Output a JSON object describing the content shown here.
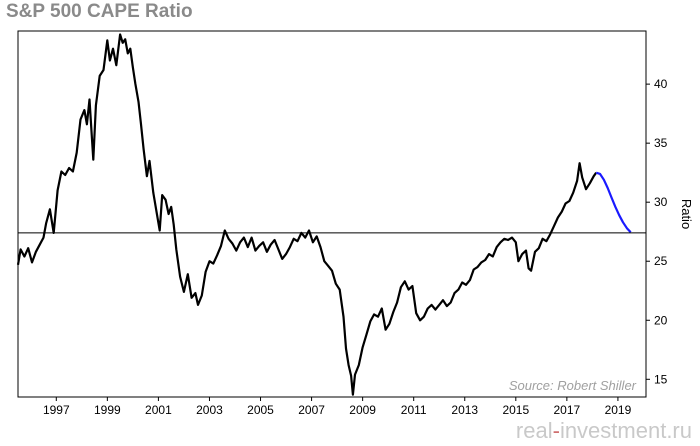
{
  "chart_data": {
    "type": "line",
    "title": "S&P 500 CAPE Ratio",
    "ylabel": "Ratio",
    "xlabel": "",
    "xlim": [
      1996.0,
      2020.6
    ],
    "ylim": [
      13.5,
      44.5
    ],
    "y_ticks": [
      15,
      20,
      25,
      30,
      35,
      40
    ],
    "x_ticks": [
      1997,
      1999,
      2001,
      2003,
      2005,
      2007,
      2009,
      2011,
      2013,
      2015,
      2017,
      2019
    ],
    "reference_line": 27.4,
    "annotation": "Source: Robert Shiller",
    "grid": false,
    "series": [
      {
        "color": "#000000",
        "points": [
          [
            1996.0,
            24.7
          ],
          [
            1996.1,
            26.0
          ],
          [
            1996.25,
            25.4
          ],
          [
            1996.4,
            26.1
          ],
          [
            1996.55,
            24.9
          ],
          [
            1996.7,
            25.8
          ],
          [
            1996.85,
            26.4
          ],
          [
            1997.0,
            27.0
          ],
          [
            1997.1,
            28.2
          ],
          [
            1997.25,
            29.4
          ],
          [
            1997.4,
            27.4
          ],
          [
            1997.55,
            31.0
          ],
          [
            1997.7,
            32.6
          ],
          [
            1997.85,
            32.3
          ],
          [
            1998.0,
            32.9
          ],
          [
            1998.15,
            32.6
          ],
          [
            1998.3,
            34.2
          ],
          [
            1998.45,
            37.0
          ],
          [
            1998.6,
            37.8
          ],
          [
            1998.7,
            36.6
          ],
          [
            1998.8,
            38.7
          ],
          [
            1998.88,
            36.0
          ],
          [
            1998.95,
            33.6
          ],
          [
            1999.05,
            38.2
          ],
          [
            1999.2,
            40.7
          ],
          [
            1999.35,
            41.2
          ],
          [
            1999.5,
            43.7
          ],
          [
            1999.6,
            42.0
          ],
          [
            1999.72,
            43.0
          ],
          [
            1999.85,
            41.6
          ],
          [
            2000.0,
            44.2
          ],
          [
            2000.1,
            43.5
          ],
          [
            2000.2,
            43.8
          ],
          [
            2000.3,
            42.6
          ],
          [
            2000.4,
            43.0
          ],
          [
            2000.5,
            41.4
          ],
          [
            2000.6,
            40.0
          ],
          [
            2000.72,
            38.5
          ],
          [
            2000.82,
            36.6
          ],
          [
            2000.92,
            34.5
          ],
          [
            2001.05,
            32.2
          ],
          [
            2001.15,
            33.5
          ],
          [
            2001.3,
            30.8
          ],
          [
            2001.45,
            28.9
          ],
          [
            2001.55,
            27.6
          ],
          [
            2001.65,
            30.6
          ],
          [
            2001.78,
            30.2
          ],
          [
            2001.9,
            29.0
          ],
          [
            2002.0,
            29.6
          ],
          [
            2002.1,
            28.1
          ],
          [
            2002.2,
            26.0
          ],
          [
            2002.35,
            23.7
          ],
          [
            2002.5,
            22.4
          ],
          [
            2002.65,
            23.9
          ],
          [
            2002.8,
            21.9
          ],
          [
            2002.95,
            22.3
          ],
          [
            2003.05,
            21.3
          ],
          [
            2003.2,
            22.1
          ],
          [
            2003.35,
            24.1
          ],
          [
            2003.5,
            25.0
          ],
          [
            2003.65,
            24.8
          ],
          [
            2003.8,
            25.5
          ],
          [
            2003.95,
            26.3
          ],
          [
            2004.1,
            27.6
          ],
          [
            2004.25,
            26.9
          ],
          [
            2004.4,
            26.5
          ],
          [
            2004.55,
            25.9
          ],
          [
            2004.7,
            26.6
          ],
          [
            2004.85,
            27.0
          ],
          [
            2005.0,
            26.2
          ],
          [
            2005.15,
            27.0
          ],
          [
            2005.3,
            25.9
          ],
          [
            2005.45,
            26.3
          ],
          [
            2005.6,
            26.6
          ],
          [
            2005.75,
            25.8
          ],
          [
            2005.9,
            26.4
          ],
          [
            2006.05,
            26.8
          ],
          [
            2006.2,
            26.0
          ],
          [
            2006.35,
            25.2
          ],
          [
            2006.5,
            25.6
          ],
          [
            2006.65,
            26.2
          ],
          [
            2006.8,
            26.9
          ],
          [
            2006.95,
            26.7
          ],
          [
            2007.1,
            27.4
          ],
          [
            2007.25,
            27.0
          ],
          [
            2007.4,
            27.6
          ],
          [
            2007.55,
            26.6
          ],
          [
            2007.7,
            27.1
          ],
          [
            2007.85,
            26.2
          ],
          [
            2008.0,
            25.0
          ],
          [
            2008.15,
            24.6
          ],
          [
            2008.3,
            24.2
          ],
          [
            2008.45,
            23.1
          ],
          [
            2008.6,
            22.6
          ],
          [
            2008.75,
            20.3
          ],
          [
            2008.85,
            17.6
          ],
          [
            2008.95,
            16.2
          ],
          [
            2009.05,
            15.3
          ],
          [
            2009.12,
            13.7
          ],
          [
            2009.2,
            15.4
          ],
          [
            2009.35,
            16.2
          ],
          [
            2009.5,
            17.7
          ],
          [
            2009.65,
            18.8
          ],
          [
            2009.8,
            19.9
          ],
          [
            2009.95,
            20.5
          ],
          [
            2010.1,
            20.3
          ],
          [
            2010.25,
            21.0
          ],
          [
            2010.4,
            19.2
          ],
          [
            2010.55,
            19.7
          ],
          [
            2010.7,
            20.7
          ],
          [
            2010.85,
            21.5
          ],
          [
            2011.0,
            22.8
          ],
          [
            2011.15,
            23.3
          ],
          [
            2011.3,
            22.6
          ],
          [
            2011.45,
            22.9
          ],
          [
            2011.6,
            20.6
          ],
          [
            2011.75,
            20.0
          ],
          [
            2011.9,
            20.3
          ],
          [
            2012.05,
            21.0
          ],
          [
            2012.2,
            21.3
          ],
          [
            2012.35,
            20.9
          ],
          [
            2012.5,
            21.3
          ],
          [
            2012.65,
            21.7
          ],
          [
            2012.8,
            21.2
          ],
          [
            2012.95,
            21.5
          ],
          [
            2013.1,
            22.3
          ],
          [
            2013.25,
            22.6
          ],
          [
            2013.4,
            23.2
          ],
          [
            2013.55,
            23.0
          ],
          [
            2013.7,
            23.4
          ],
          [
            2013.85,
            24.3
          ],
          [
            2014.0,
            24.5
          ],
          [
            2014.15,
            24.9
          ],
          [
            2014.3,
            25.1
          ],
          [
            2014.45,
            25.6
          ],
          [
            2014.6,
            25.4
          ],
          [
            2014.75,
            26.2
          ],
          [
            2014.9,
            26.6
          ],
          [
            2015.05,
            26.9
          ],
          [
            2015.2,
            26.8
          ],
          [
            2015.35,
            27.0
          ],
          [
            2015.5,
            26.6
          ],
          [
            2015.6,
            25.0
          ],
          [
            2015.75,
            25.6
          ],
          [
            2015.9,
            25.9
          ],
          [
            2016.0,
            24.4
          ],
          [
            2016.1,
            24.2
          ],
          [
            2016.25,
            25.8
          ],
          [
            2016.4,
            26.1
          ],
          [
            2016.55,
            26.9
          ],
          [
            2016.7,
            26.7
          ],
          [
            2016.85,
            27.3
          ],
          [
            2017.0,
            28.0
          ],
          [
            2017.15,
            28.7
          ],
          [
            2017.3,
            29.2
          ],
          [
            2017.45,
            29.9
          ],
          [
            2017.6,
            30.1
          ],
          [
            2017.75,
            30.8
          ],
          [
            2017.9,
            31.8
          ],
          [
            2018.0,
            33.3
          ],
          [
            2018.1,
            32.1
          ],
          [
            2018.25,
            31.1
          ],
          [
            2018.4,
            31.6
          ],
          [
            2018.55,
            32.2
          ],
          [
            2018.65,
            32.5
          ]
        ]
      },
      {
        "color": "#1a1aff",
        "points": [
          [
            2018.65,
            32.5
          ],
          [
            2018.8,
            32.4
          ],
          [
            2018.95,
            31.9
          ],
          [
            2019.1,
            31.2
          ],
          [
            2019.25,
            30.4
          ],
          [
            2019.4,
            29.6
          ],
          [
            2019.55,
            28.9
          ],
          [
            2019.7,
            28.3
          ],
          [
            2019.85,
            27.8
          ],
          [
            2020.0,
            27.45
          ]
        ]
      }
    ]
  },
  "footer": {
    "watermark_prefix": "real",
    "watermark_dash": "-",
    "watermark_suffix": "investment.ru"
  }
}
